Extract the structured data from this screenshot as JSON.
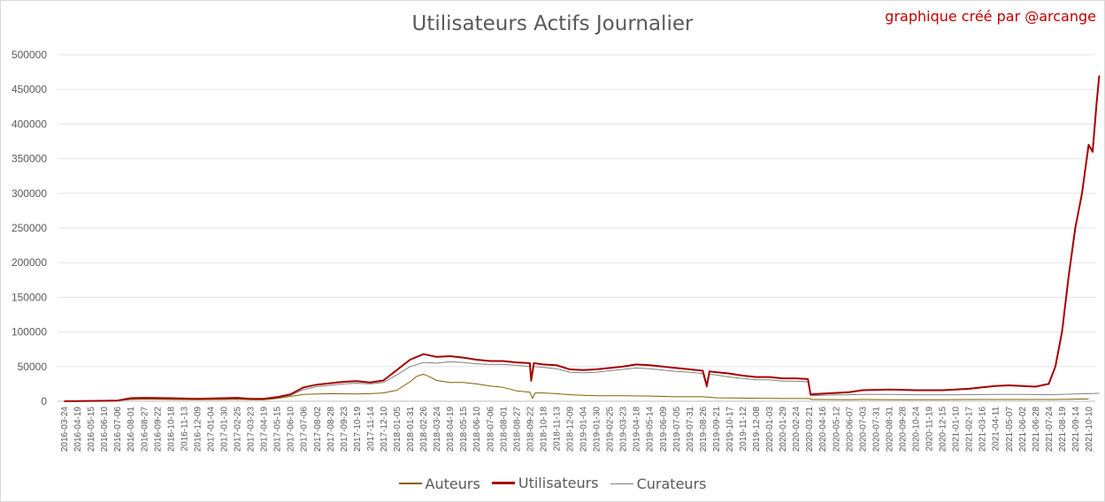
{
  "chart_data": {
    "type": "line",
    "title": "Utilisateurs Actifs Journalier",
    "credit": "graphique créé par @arcange",
    "ylim": [
      0,
      500000
    ],
    "yticks": [
      0,
      50000,
      100000,
      150000,
      200000,
      250000,
      300000,
      350000,
      400000,
      450000,
      500000
    ],
    "ytick_labels": [
      "0",
      "50000",
      "100000",
      "150000",
      "200000",
      "250000",
      "300000",
      "350000",
      "400000",
      "450000",
      "500000"
    ],
    "x_tick_labels": [
      "2016-03-24",
      "2016-04-19",
      "2016-05-15",
      "2016-06-10",
      "2016-07-06",
      "2016-08-01",
      "2016-08-27",
      "2016-09-22",
      "2016-10-18",
      "2016-11-13",
      "2016-12-09",
      "2017-01-04",
      "2017-01-30",
      "2017-02-25",
      "2017-03-23",
      "2017-04-19",
      "2017-05-15",
      "2017-06-10",
      "2017-07-06",
      "2017-08-02",
      "2017-08-28",
      "2017-09-23",
      "2017-10-19",
      "2017-11-14",
      "2017-12-10",
      "2018-01-05",
      "2018-01-31",
      "2018-02-26",
      "2018-03-24",
      "2018-04-19",
      "2018-05-15",
      "2018-06-10",
      "2018-07-06",
      "2018-08-01",
      "2018-08-27",
      "2018-09-22",
      "2018-10-18",
      "2018-11-13",
      "2018-12-09",
      "2019-01-04",
      "2019-01-30",
      "2019-02-25",
      "2019-03-23",
      "2019-04-18",
      "2019-05-14",
      "2019-06-09",
      "2019-07-05",
      "2019-07-31",
      "2019-08-26",
      "2019-09-21",
      "2019-10-17",
      "2019-11-12",
      "2019-12-08",
      "2020-01-03",
      "2020-01-29",
      "2020-02-24",
      "2020-03-21",
      "2020-04-16",
      "2020-05-12",
      "2020-06-07",
      "2020-07-03",
      "2020-07-31",
      "2020-08-31",
      "2020-09-28",
      "2020-10-24",
      "2020-11-19",
      "2020-12-15",
      "2021-01-10",
      "2021-02-17",
      "2021-03-16",
      "2021-04-11",
      "2021-05-07",
      "2021-06-02",
      "2021-06-28",
      "2021-07-24",
      "2021-08-19",
      "2021-09-14",
      "2021-10-10"
    ],
    "legend_position": "bottom",
    "grid": true,
    "series": [
      {
        "name": "Auteurs",
        "color": "#7f6000",
        "points": [
          [
            0,
            0
          ],
          [
            2,
            500
          ],
          [
            3,
            600
          ],
          [
            4,
            800
          ],
          [
            5,
            2500
          ],
          [
            6,
            3000
          ],
          [
            8,
            2500
          ],
          [
            10,
            2200
          ],
          [
            12,
            2500
          ],
          [
            13,
            2800
          ],
          [
            14,
            2300
          ],
          [
            15,
            2000
          ],
          [
            16,
            4000
          ],
          [
            17,
            7000
          ],
          [
            18,
            10000
          ],
          [
            20,
            11000
          ],
          [
            22,
            10500
          ],
          [
            23,
            11000
          ],
          [
            24,
            12000
          ],
          [
            25,
            16000
          ],
          [
            26,
            28000
          ],
          [
            26.5,
            36000
          ],
          [
            27,
            39000
          ],
          [
            27.5,
            35000
          ],
          [
            28,
            30000
          ],
          [
            29,
            27000
          ],
          [
            30,
            27000
          ],
          [
            31,
            25000
          ],
          [
            32,
            22000
          ],
          [
            33,
            20000
          ],
          [
            34,
            15000
          ],
          [
            35,
            13000
          ],
          [
            35.2,
            4000
          ],
          [
            35.4,
            12000
          ],
          [
            36,
            12000
          ],
          [
            37,
            11000
          ],
          [
            38,
            9500
          ],
          [
            39,
            8500
          ],
          [
            40,
            8000
          ],
          [
            42,
            8000
          ],
          [
            44,
            7500
          ],
          [
            46,
            6500
          ],
          [
            48,
            6500
          ],
          [
            49,
            5000
          ],
          [
            50,
            4800
          ],
          [
            52,
            4300
          ],
          [
            54,
            4000
          ],
          [
            55,
            4000
          ],
          [
            56,
            4000
          ],
          [
            56.2,
            2500
          ],
          [
            57,
            2500
          ],
          [
            59,
            2300
          ],
          [
            60,
            2500
          ],
          [
            62,
            2300
          ],
          [
            64,
            2200
          ],
          [
            66,
            2200
          ],
          [
            68,
            2500
          ],
          [
            70,
            2500
          ],
          [
            72,
            2500
          ],
          [
            74,
            2500
          ],
          [
            75,
            2700
          ],
          [
            76,
            3000
          ],
          [
            77,
            3300
          ]
        ]
      },
      {
        "name": "Utilisateurs",
        "color": "#a50000",
        "points": [
          [
            0,
            0
          ],
          [
            2,
            500
          ],
          [
            3,
            700
          ],
          [
            4,
            1000
          ],
          [
            5,
            4500
          ],
          [
            6,
            5000
          ],
          [
            8,
            4500
          ],
          [
            10,
            3500
          ],
          [
            12,
            4500
          ],
          [
            13,
            5000
          ],
          [
            14,
            3500
          ],
          [
            15,
            3500
          ],
          [
            16,
            6000
          ],
          [
            17,
            10000
          ],
          [
            18,
            20000
          ],
          [
            19,
            24000
          ],
          [
            20,
            26000
          ],
          [
            21,
            28000
          ],
          [
            22,
            29000
          ],
          [
            23,
            27000
          ],
          [
            24,
            30000
          ],
          [
            25,
            45000
          ],
          [
            26,
            60000
          ],
          [
            27,
            68000
          ],
          [
            28,
            64000
          ],
          [
            29,
            65000
          ],
          [
            30,
            63000
          ],
          [
            31,
            60000
          ],
          [
            32,
            58000
          ],
          [
            33,
            58000
          ],
          [
            34,
            56000
          ],
          [
            35,
            55000
          ],
          [
            35.1,
            30000
          ],
          [
            35.3,
            55000
          ],
          [
            36,
            53000
          ],
          [
            37,
            52000
          ],
          [
            38,
            46000
          ],
          [
            39,
            45000
          ],
          [
            40,
            46000
          ],
          [
            41,
            48000
          ],
          [
            42,
            50000
          ],
          [
            43,
            53000
          ],
          [
            44,
            52000
          ],
          [
            45,
            50000
          ],
          [
            46,
            48000
          ],
          [
            47,
            46000
          ],
          [
            48,
            44000
          ],
          [
            48.3,
            22000
          ],
          [
            48.5,
            43000
          ],
          [
            49,
            42000
          ],
          [
            50,
            40000
          ],
          [
            51,
            37000
          ],
          [
            52,
            35000
          ],
          [
            53,
            35000
          ],
          [
            54,
            33000
          ],
          [
            55,
            33000
          ],
          [
            55.9,
            32000
          ],
          [
            56.1,
            10000
          ],
          [
            57,
            11000
          ],
          [
            58,
            12000
          ],
          [
            59,
            13000
          ],
          [
            60,
            16000
          ],
          [
            62,
            17000
          ],
          [
            64,
            16000
          ],
          [
            66,
            16000
          ],
          [
            67,
            17000
          ],
          [
            68,
            18000
          ],
          [
            69,
            20000
          ],
          [
            70,
            22000
          ],
          [
            71,
            23000
          ],
          [
            72,
            22000
          ],
          [
            73,
            21000
          ],
          [
            74,
            25000
          ],
          [
            74.5,
            50000
          ],
          [
            75,
            100000
          ],
          [
            75.5,
            180000
          ],
          [
            76,
            250000
          ],
          [
            76.5,
            300000
          ],
          [
            77,
            370000
          ],
          [
            77.3,
            360000
          ],
          [
            77.6,
            430000
          ],
          [
            77.8,
            470000
          ]
        ]
      },
      {
        "name": "Curateurs",
        "color": "#808080",
        "points": [
          [
            0,
            0
          ],
          [
            2,
            400
          ],
          [
            3,
            500
          ],
          [
            4,
            700
          ],
          [
            5,
            3500
          ],
          [
            6,
            4000
          ],
          [
            8,
            3500
          ],
          [
            10,
            3000
          ],
          [
            12,
            3500
          ],
          [
            13,
            4000
          ],
          [
            14,
            3000
          ],
          [
            15,
            3000
          ],
          [
            16,
            5000
          ],
          [
            17,
            8500
          ],
          [
            18,
            17000
          ],
          [
            19,
            21000
          ],
          [
            20,
            23000
          ],
          [
            21,
            25000
          ],
          [
            22,
            26000
          ],
          [
            23,
            25000
          ],
          [
            24,
            27000
          ],
          [
            25,
            38000
          ],
          [
            26,
            50000
          ],
          [
            27,
            56000
          ],
          [
            28,
            55000
          ],
          [
            29,
            57000
          ],
          [
            30,
            56000
          ],
          [
            31,
            54000
          ],
          [
            32,
            53000
          ],
          [
            33,
            53000
          ],
          [
            34,
            52000
          ],
          [
            35,
            50000
          ],
          [
            35.1,
            28000
          ],
          [
            35.3,
            50000
          ],
          [
            36,
            49000
          ],
          [
            37,
            47000
          ],
          [
            38,
            42000
          ],
          [
            39,
            41000
          ],
          [
            40,
            42000
          ],
          [
            41,
            44000
          ],
          [
            42,
            46000
          ],
          [
            43,
            48000
          ],
          [
            44,
            47000
          ],
          [
            45,
            45000
          ],
          [
            46,
            43000
          ],
          [
            47,
            42000
          ],
          [
            48,
            40000
          ],
          [
            48.3,
            20000
          ],
          [
            48.5,
            39000
          ],
          [
            49,
            38000
          ],
          [
            50,
            35000
          ],
          [
            51,
            33000
          ],
          [
            52,
            31000
          ],
          [
            53,
            31000
          ],
          [
            54,
            29000
          ],
          [
            55,
            29000
          ],
          [
            55.9,
            28000
          ],
          [
            56.1,
            8000
          ],
          [
            57,
            8500
          ],
          [
            58,
            9000
          ],
          [
            59,
            9500
          ],
          [
            60,
            10000
          ],
          [
            62,
            10000
          ],
          [
            64,
            9500
          ],
          [
            66,
            9500
          ],
          [
            68,
            9500
          ],
          [
            70,
            10000
          ],
          [
            72,
            10000
          ],
          [
            74,
            9500
          ],
          [
            75,
            10000
          ],
          [
            76,
            10500
          ],
          [
            77,
            11000
          ],
          [
            77.8,
            11500
          ]
        ]
      }
    ]
  }
}
